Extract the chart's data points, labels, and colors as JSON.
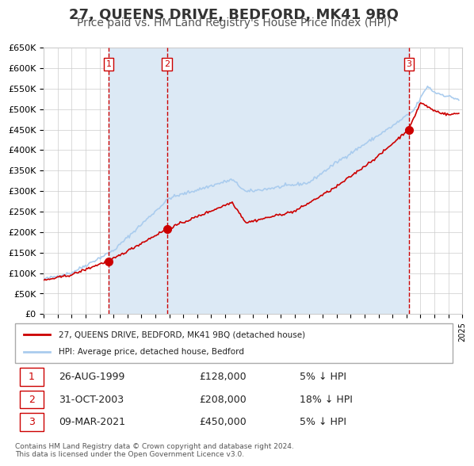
{
  "title": "27, QUEENS DRIVE, BEDFORD, MK41 9BQ",
  "subtitle": "Price paid vs. HM Land Registry's House Price Index (HPI)",
  "title_fontsize": 13,
  "subtitle_fontsize": 10,
  "background_color": "#ffffff",
  "plot_bg_color": "#ffffff",
  "grid_color": "#cccccc",
  "xmin": 1995,
  "xmax": 2025,
  "ymin": 0,
  "ymax": 650000,
  "yticks": [
    0,
    50000,
    100000,
    150000,
    200000,
    250000,
    300000,
    350000,
    400000,
    450000,
    500000,
    550000,
    600000,
    650000
  ],
  "ytick_labels": [
    "£0",
    "£50K",
    "£100K",
    "£150K",
    "£200K",
    "£250K",
    "£300K",
    "£350K",
    "£400K",
    "£450K",
    "£500K",
    "£550K",
    "£600K",
    "£650K"
  ],
  "sale_color": "#cc0000",
  "hpi_color": "#aaccee",
  "sale_marker_color": "#cc0000",
  "vline_color": "#cc0000",
  "sale_points": [
    {
      "year": 1999.65,
      "price": 128000,
      "label": "1"
    },
    {
      "year": 2003.83,
      "price": 208000,
      "label": "2"
    },
    {
      "year": 2021.18,
      "price": 450000,
      "label": "3"
    }
  ],
  "transactions": [
    {
      "label": "1",
      "date": "26-AUG-1999",
      "price": "£128,000",
      "hpi_diff": "5% ↓ HPI"
    },
    {
      "label": "2",
      "date": "31-OCT-2003",
      "price": "£208,000",
      "hpi_diff": "18% ↓ HPI"
    },
    {
      "label": "3",
      "date": "09-MAR-2021",
      "price": "£450,000",
      "hpi_diff": "5% ↓ HPI"
    }
  ],
  "legend_sale_label": "27, QUEENS DRIVE, BEDFORD, MK41 9BQ (detached house)",
  "legend_hpi_label": "HPI: Average price, detached house, Bedford",
  "footnote": "Contains HM Land Registry data © Crown copyright and database right 2024.\nThis data is licensed under the Open Government Licence v3.0.",
  "shaded_regions": [
    {
      "x_start": 1999.65,
      "x_end": 2003.83
    },
    {
      "x_start": 2003.83,
      "x_end": 2021.18
    }
  ]
}
